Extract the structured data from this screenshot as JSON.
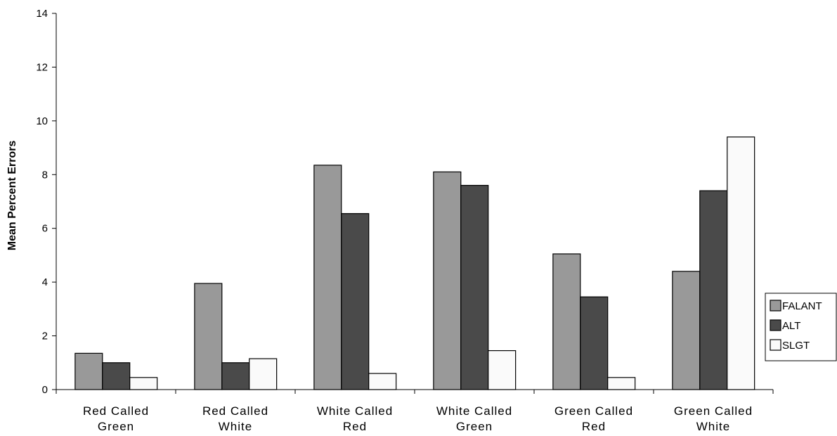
{
  "chart_data": {
    "type": "bar",
    "ylabel": "Mean Percent Errors",
    "xlabel": "",
    "ylim": [
      0,
      14
    ],
    "yticks": [
      0,
      2,
      4,
      6,
      8,
      10,
      12,
      14
    ],
    "categories": [
      [
        "Red Called",
        "Green"
      ],
      [
        "Red Called",
        "White"
      ],
      [
        "White Called",
        "Red"
      ],
      [
        "White Called",
        "Green"
      ],
      [
        "Green Called",
        "Red"
      ],
      [
        "Green Called",
        "White"
      ]
    ],
    "series": [
      {
        "name": "FALANT",
        "color": "#999999",
        "values": [
          1.35,
          3.95,
          8.35,
          8.1,
          5.05,
          4.4
        ]
      },
      {
        "name": "ALT",
        "color": "#4a4a4a",
        "values": [
          1.0,
          1.0,
          6.55,
          7.6,
          3.45,
          7.4
        ]
      },
      {
        "name": "SLGT",
        "color": "#fafafa",
        "values": [
          0.45,
          1.15,
          0.6,
          1.45,
          0.45,
          9.4
        ]
      }
    ],
    "grid": false,
    "legend_position": "right"
  }
}
